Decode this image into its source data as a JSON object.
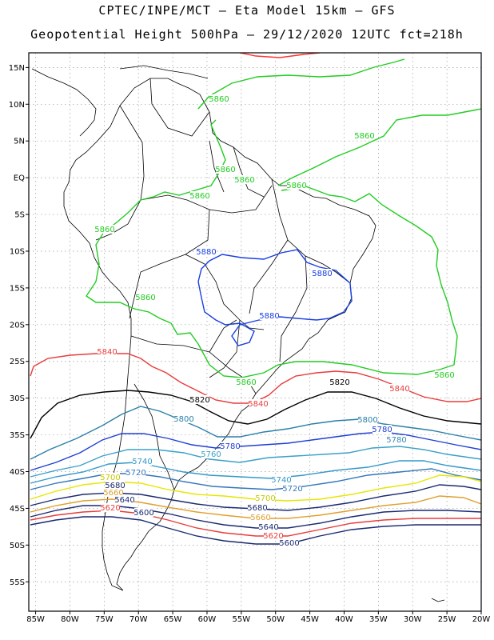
{
  "title": {
    "line1": "CPTEC/INPE/MCT –  Eta Model 15km – GFS",
    "line2": "Geopotential Height 500hPa – 29/12/2020 12UTC fct=218h"
  },
  "map": {
    "lon_range": [
      -86,
      -20
    ],
    "lat_range": [
      -59,
      17
    ],
    "lon_ticks": [
      "85W",
      "80W",
      "75W",
      "70W",
      "65W",
      "60W",
      "55W",
      "50W",
      "45W",
      "40W",
      "35W",
      "30W",
      "25W",
      "20W"
    ],
    "lat_ticks": [
      "15N",
      "10N",
      "5N",
      "EQ",
      "5S",
      "10S",
      "15S",
      "20S",
      "25S",
      "30S",
      "35S",
      "40S",
      "45S",
      "50S",
      "55S"
    ],
    "grid": true,
    "land_color": "#ffffff",
    "border_color": "#000000"
  },
  "contours": [
    {
      "value": "5880",
      "color": "#ff3333"
    },
    {
      "value": "5860",
      "color": "#22cc22"
    },
    {
      "value": "5880",
      "color": "#1a3fe0"
    },
    {
      "value": "5840",
      "color": "#e83c3c"
    },
    {
      "value": "5820",
      "color": "#000000"
    },
    {
      "value": "5800",
      "color": "#2a7fa8"
    },
    {
      "value": "5780",
      "color": "#1f3ed6"
    },
    {
      "value": "5760",
      "color": "#3aa0c8"
    },
    {
      "value": "5740",
      "color": "#3399cc"
    },
    {
      "value": "5720",
      "color": "#3377bb"
    },
    {
      "value": "5700",
      "color": "#e6e600"
    },
    {
      "value": "5680",
      "color": "#1a2a70"
    },
    {
      "value": "5660",
      "color": "#e0a030"
    },
    {
      "value": "5640",
      "color": "#1a2a70"
    },
    {
      "value": "5620",
      "color": "#e83c3c"
    },
    {
      "value": "5600",
      "color": "#1a2a70"
    }
  ],
  "labels": [
    {
      "text": "5860",
      "color": "#22cc22"
    },
    {
      "text": "5860",
      "color": "#22cc22"
    },
    {
      "text": "5860",
      "color": "#22cc22"
    },
    {
      "text": "5860",
      "color": "#22cc22"
    },
    {
      "text": "5860",
      "color": "#22cc22"
    },
    {
      "text": "5860",
      "color": "#22cc22"
    },
    {
      "text": "5860",
      "color": "#22cc22"
    },
    {
      "text": "5860",
      "color": "#22cc22"
    },
    {
      "text": "5860",
      "color": "#22cc22"
    },
    {
      "text": "5860",
      "color": "#22cc22"
    },
    {
      "text": "5880",
      "color": "#1a3fe0"
    },
    {
      "text": "5880",
      "color": "#1a3fe0"
    },
    {
      "text": "5880",
      "color": "#1a3fe0"
    },
    {
      "text": "5840",
      "color": "#e83c3c"
    },
    {
      "text": "5840",
      "color": "#e83c3c"
    },
    {
      "text": "5840",
      "color": "#e83c3c"
    },
    {
      "text": "5820",
      "color": "#000000"
    },
    {
      "text": "5820",
      "color": "#000000"
    },
    {
      "text": "5800",
      "color": "#2a7fa8"
    },
    {
      "text": "5800",
      "color": "#2a7fa8"
    },
    {
      "text": "5780",
      "color": "#1f3ed6"
    },
    {
      "text": "5780",
      "color": "#1f3ed6"
    },
    {
      "text": "5780",
      "color": "#3a88b8"
    },
    {
      "text": "5760",
      "color": "#3aa0c8"
    },
    {
      "text": "5740",
      "color": "#3399cc"
    },
    {
      "text": "5740",
      "color": "#3399cc"
    },
    {
      "text": "5720",
      "color": "#3377bb"
    },
    {
      "text": "5720",
      "color": "#3377bb"
    },
    {
      "text": "5700",
      "color": "#c8c800"
    },
    {
      "text": "5700",
      "color": "#c8c800"
    },
    {
      "text": "5680",
      "color": "#1a2a70"
    },
    {
      "text": "5680",
      "color": "#1a2a70"
    },
    {
      "text": "5660",
      "color": "#e0a030"
    },
    {
      "text": "5660",
      "color": "#e0a030"
    },
    {
      "text": "5640",
      "color": "#1a2a70"
    },
    {
      "text": "5640",
      "color": "#1a2a70"
    },
    {
      "text": "5620",
      "color": "#e83c3c"
    },
    {
      "text": "5620",
      "color": "#e83c3c"
    },
    {
      "text": "5600",
      "color": "#1a2a70"
    },
    {
      "text": "5600",
      "color": "#1a2a70"
    }
  ]
}
